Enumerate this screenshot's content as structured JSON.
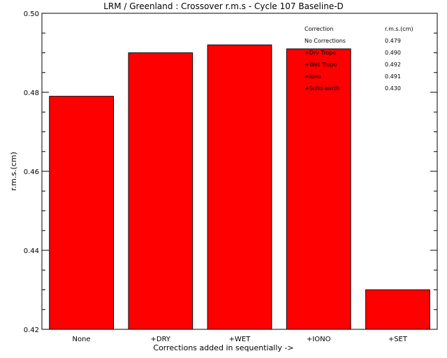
{
  "chart_data": {
    "type": "bar",
    "title": "LRM / Greenland : Crossover r.m.s - Cycle 107 Baseline-D",
    "xlabel": "Corrections added in sequentially ->",
    "ylabel": "r.m.s.(cm)",
    "categories": [
      "None",
      "+DRY",
      "+WET",
      "+IONO",
      "+SET"
    ],
    "values": [
      0.479,
      0.49,
      0.492,
      0.491,
      0.43
    ],
    "ylim": [
      0.42,
      0.5
    ],
    "yticks": [
      "0.42",
      "0.44",
      "0.46",
      "0.48",
      "0.50"
    ],
    "ytick_values": [
      0.42,
      0.44,
      0.46,
      0.48,
      0.5
    ],
    "bar_color": "#ff0000",
    "grid": false,
    "table": {
      "header": [
        "Correction",
        "r.m.s.(cm)"
      ],
      "rows": [
        [
          "No Corrections",
          "0.479"
        ],
        [
          "+Dry Tropo",
          "0.490"
        ],
        [
          "+Wet Tropo",
          "0.492"
        ],
        [
          "+Iono",
          "0.491"
        ],
        [
          "+Solid earth",
          "0.430"
        ]
      ]
    }
  }
}
